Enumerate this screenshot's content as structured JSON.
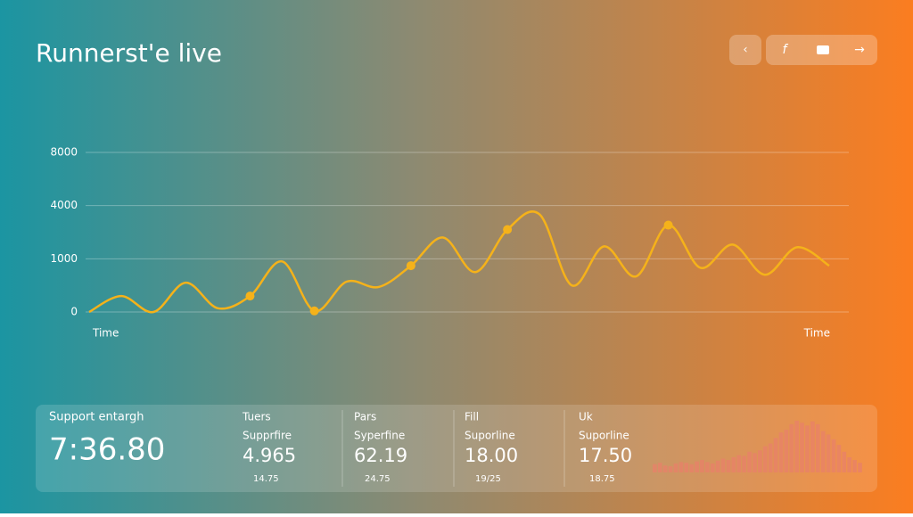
{
  "header": {
    "title": "Runnerst'e live"
  },
  "chart_data": {
    "type": "line",
    "x_label": "Time",
    "color": "#f5b21a",
    "values": [
      0,
      300,
      0,
      550,
      70,
      300,
      950,
      20,
      570,
      470,
      870,
      2200,
      750,
      2650,
      3500,
      500,
      1700,
      670,
      2900,
      830,
      1800,
      700,
      1650,
      870
    ],
    "highlight_points": [
      5,
      7,
      10,
      13,
      18
    ],
    "ylim": [
      0,
      8000
    ],
    "yticks": [
      0,
      1000,
      4000,
      8000
    ],
    "grid": true
  },
  "stats": {
    "main": {
      "label": "Support entargh",
      "value": "7:36.80"
    },
    "cards": [
      {
        "label": "Tuers",
        "sublabel": "Supprfire",
        "value": "4.965",
        "note": "14.75"
      },
      {
        "label": "Pars",
        "sublabel": "Syperfine",
        "value": "62.19",
        "note": "24.75"
      },
      {
        "label": "Fill",
        "sublabel": "Suporline",
        "value": "18.00",
        "note": "19/25"
      },
      {
        "label": "Uk",
        "sublabel": "Suporline",
        "value": "17.50",
        "note": "18.75"
      }
    ],
    "sparkline": {
      "color": "#e8806a",
      "values": [
        12,
        14,
        10,
        9,
        13,
        15,
        14,
        12,
        16,
        18,
        15,
        13,
        17,
        20,
        18,
        22,
        25,
        24,
        30,
        28,
        32,
        38,
        42,
        50,
        58,
        62,
        70,
        75,
        72,
        68,
        74,
        70,
        60,
        55,
        48,
        40,
        30,
        22,
        18,
        14
      ]
    }
  }
}
